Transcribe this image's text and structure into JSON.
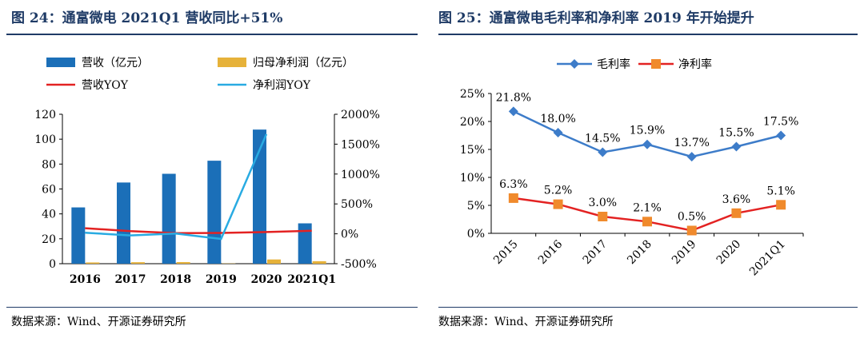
{
  "left": {
    "title": "图 24：通富微电 2021Q1 营收同比+51%",
    "source": "数据来源：Wind、开源证券研究所",
    "chart_data": {
      "type": "bar",
      "categories": [
        "2016",
        "2017",
        "2018",
        "2019",
        "2020",
        "2021Q1"
      ],
      "series": [
        {
          "name": "营收（亿元）",
          "kind": "bar",
          "axis": "left",
          "color": "#1b6fb8",
          "values": [
            45.2,
            65.2,
            72.2,
            82.7,
            107.7,
            32.4
          ]
        },
        {
          "name": "归母净利润（亿元）",
          "kind": "bar",
          "axis": "left",
          "color": "#e6b23a",
          "values": [
            1.0,
            1.2,
            1.3,
            0.2,
            3.4,
            2.0
          ]
        },
        {
          "name": "营收YOY",
          "kind": "line",
          "axis": "right",
          "color": "#e32222",
          "values": [
            94,
            44,
            11,
            15,
            30,
            51
          ]
        },
        {
          "name": "净利润YOY",
          "kind": "line",
          "axis": "right",
          "color": "#29abe2",
          "values": [
            18,
            -27,
            5,
            -86,
            1668,
            null
          ]
        }
      ],
      "ylim": [
        0,
        120
      ],
      "y_ticks": [
        "0",
        "20",
        "40",
        "60",
        "80",
        "100",
        "120"
      ],
      "y2lim": [
        -500,
        2000
      ],
      "y2_ticks": [
        "-500%",
        "0%",
        "500%",
        "1000%",
        "1500%",
        "2000%"
      ],
      "legend_position": "top"
    }
  },
  "right": {
    "title": "图 25：通富微电毛利率和净利率 2019 年开始提升",
    "source": "数据来源：Wind、开源证券研究所",
    "chart_data": {
      "type": "line",
      "categories": [
        "2015",
        "2016",
        "2017",
        "2018",
        "2019",
        "2020",
        "2021Q1"
      ],
      "series": [
        {
          "name": "毛利率",
          "color": "#3d7cc9",
          "marker": "diamond",
          "values": [
            21.8,
            18.0,
            14.5,
            15.9,
            13.7,
            15.5,
            17.5
          ],
          "labels": [
            "21.8%",
            "18.0%",
            "14.5%",
            "15.9%",
            "13.7%",
            "15.5%",
            "17.5%"
          ]
        },
        {
          "name": "净利率",
          "color": "#e32222",
          "marker_color": "#f08a2c",
          "marker": "square",
          "values": [
            6.3,
            5.2,
            3.0,
            2.1,
            0.5,
            3.6,
            5.1
          ],
          "labels": [
            "6.3%",
            "5.2%",
            "3.0%",
            "2.1%",
            "0.5%",
            "3.6%",
            "5.1%"
          ]
        }
      ],
      "ylim": [
        0,
        25
      ],
      "y_ticks": [
        "0%",
        "5%",
        "10%",
        "15%",
        "20%",
        "25%"
      ],
      "legend_position": "top"
    }
  }
}
